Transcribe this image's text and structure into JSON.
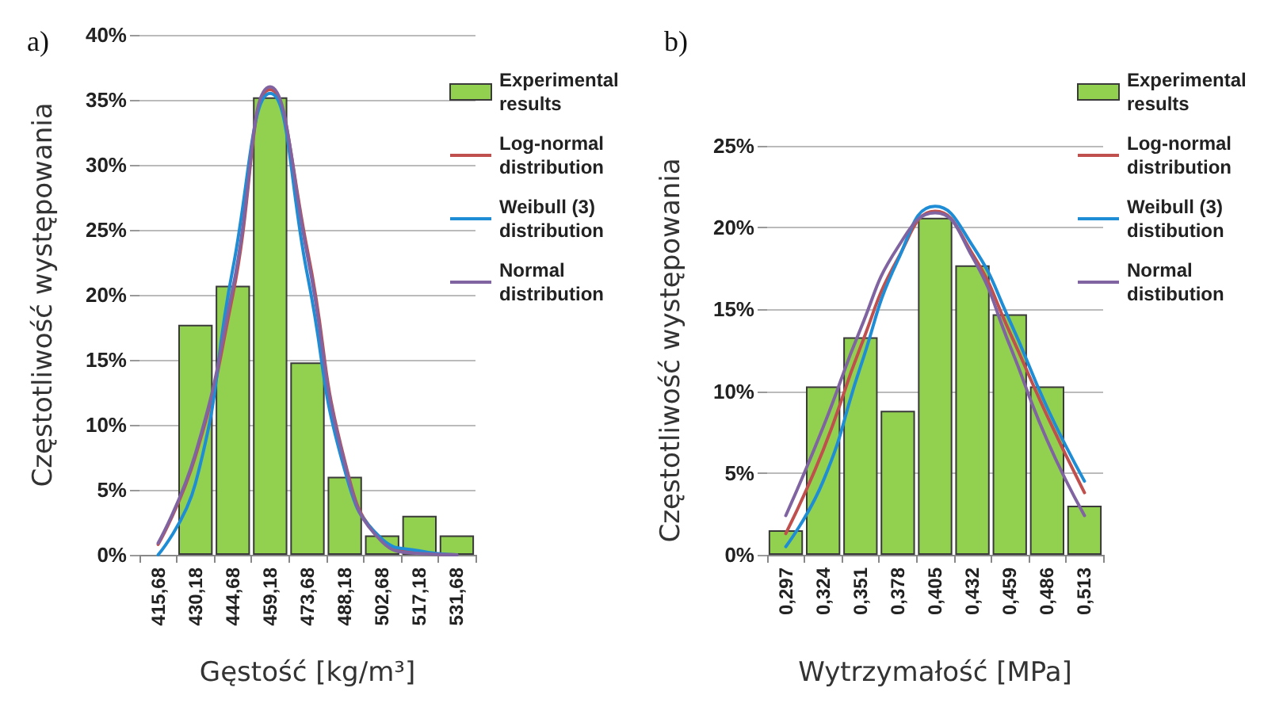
{
  "chart_data": [
    {
      "type": "bar",
      "title": "a)",
      "xlabel": "Gęstość [kg/m³]",
      "ylabel": "Częstotliwość występowania",
      "categories": [
        "415,68",
        "430,18",
        "444,68",
        "459,18",
        "473,68",
        "488,18",
        "502,68",
        "517,18",
        "531,68"
      ],
      "series": [
        {
          "name": "Experimental results",
          "color": "#92d050",
          "values": [
            null,
            17.7,
            20.7,
            35.2,
            14.8,
            6.0,
            1.5,
            3.0,
            1.5
          ]
        },
        {
          "name": "Log-normal distribution",
          "type": "line",
          "color": "#c0504d",
          "values": [
            0.8,
            7.6,
            20.0,
            35.8,
            23.4,
            7.2,
            1.1,
            0.2,
            0
          ]
        },
        {
          "name": "Weibull (3) distribution",
          "type": "line",
          "color": "#1f8dd6",
          "values": [
            0,
            5.5,
            22.0,
            35.5,
            21.5,
            6.5,
            1.2,
            0.3,
            0
          ]
        },
        {
          "name": "Normal distribution",
          "type": "line",
          "color": "#8064a2",
          "values": [
            0.9,
            7.8,
            20.5,
            36.0,
            23.0,
            7.0,
            1.0,
            0.1,
            0
          ]
        }
      ],
      "ylim": [
        0,
        40
      ],
      "yticks": [
        {
          "value": 0,
          "label": "0%"
        },
        {
          "value": 5,
          "label": "5%"
        },
        {
          "value": 10,
          "label": "10%"
        },
        {
          "value": 15,
          "label": "15%"
        },
        {
          "value": 20,
          "label": "20%"
        },
        {
          "value": 25,
          "label": "25%"
        },
        {
          "value": 30,
          "label": "30%"
        },
        {
          "value": 35,
          "label": "35%"
        },
        {
          "value": 40,
          "label": "40%"
        }
      ],
      "grid": "y",
      "legend": "top right",
      "marker": "none"
    },
    {
      "type": "bar",
      "title": "b)",
      "xlabel": "Wytrzymałość [MPa]",
      "ylabel": "Częstotliwość występowania",
      "categories": [
        "0,297",
        "0,324",
        "0,351",
        "0,378",
        "0,405",
        "0,432",
        "0,459",
        "0,486",
        "0,513"
      ],
      "series": [
        {
          "name": "Experimental results",
          "color": "#92d050",
          "values": [
            1.5,
            10.3,
            13.3,
            8.8,
            20.6,
            17.7,
            14.7,
            10.3,
            3.0
          ]
        },
        {
          "name": "Log-normal distribution",
          "type": "line",
          "color": "#c0504d",
          "values": [
            1.3,
            6.4,
            12.7,
            18.1,
            21.0,
            18.4,
            13.6,
            8.5,
            3.8
          ]
        },
        {
          "name": "Weibull (3) distibution",
          "type": "line",
          "color": "#1f8dd6",
          "values": [
            0.5,
            4.5,
            11.5,
            18.0,
            21.3,
            18.9,
            14.3,
            9.0,
            4.5
          ]
        },
        {
          "name": "Normal distibution",
          "type": "line",
          "color": "#8064a2",
          "values": [
            2.4,
            7.8,
            13.8,
            18.8,
            20.9,
            18.2,
            12.8,
            7.0,
            2.4
          ]
        }
      ],
      "ylim": [
        0,
        25
      ],
      "yticks": [
        {
          "value": 0,
          "label": "0%"
        },
        {
          "value": 5,
          "label": "5%"
        },
        {
          "value": 10,
          "label": "10%"
        },
        {
          "value": 15,
          "label": "15%"
        },
        {
          "value": 20,
          "label": "20%"
        },
        {
          "value": 25,
          "label": "25%"
        }
      ],
      "grid": "y",
      "legend": "top right",
      "marker": "none"
    }
  ]
}
